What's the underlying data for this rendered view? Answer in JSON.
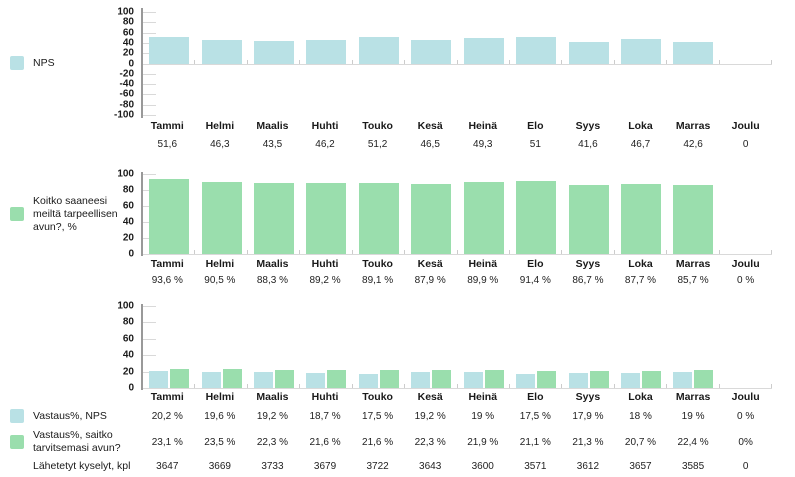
{
  "months": [
    "Tammi",
    "Helmi",
    "Maalis",
    "Huhti",
    "Touko",
    "Kesä",
    "Heinä",
    "Elo",
    "Syys",
    "Loka",
    "Marras",
    "Joulu"
  ],
  "colors": {
    "bar_blue": "#b9e1e5",
    "bar_green": "#9adead",
    "axis_line": "#999999",
    "tick_line": "#d9d9d9",
    "boundary_tick": "#cccccc",
    "text": "#1a1a1a"
  },
  "chart_data": [
    {
      "type": "bar",
      "legend": "NPS",
      "legend_position": "left",
      "grid": false,
      "series_color": "bar_blue",
      "categories": [
        "Tammi",
        "Helmi",
        "Maalis",
        "Huhti",
        "Touko",
        "Kesä",
        "Heinä",
        "Elo",
        "Syys",
        "Loka",
        "Marras",
        "Joulu"
      ],
      "values": [
        51.6,
        46.3,
        43.5,
        46.2,
        51.2,
        46.5,
        49.3,
        51,
        41.6,
        46.7,
        42.6,
        0
      ],
      "value_labels": [
        "51,6",
        "46,3",
        "43,5",
        "46,2",
        "51,2",
        "46,5",
        "49,3",
        "51",
        "41,6",
        "46,7",
        "42,6",
        "0"
      ],
      "ylim": [
        -100,
        100
      ],
      "yticks": [
        100,
        80,
        60,
        40,
        20,
        0,
        -20,
        -40,
        -60,
        -80,
        -100
      ]
    },
    {
      "type": "bar",
      "legend": "Koitko saaneesi meiltä tarpeellisen avun?, %",
      "legend_position": "left",
      "grid": false,
      "series_color": "bar_green",
      "categories": [
        "Tammi",
        "Helmi",
        "Maalis",
        "Huhti",
        "Touko",
        "Kesä",
        "Heinä",
        "Elo",
        "Syys",
        "Loka",
        "Marras",
        "Joulu"
      ],
      "values": [
        93.6,
        90.5,
        88.3,
        89.2,
        89.1,
        87.9,
        89.9,
        91.4,
        86.7,
        87.7,
        85.7,
        0
      ],
      "value_labels": [
        "93,6 %",
        "90,5 %",
        "88,3 %",
        "89,2 %",
        "89,1 %",
        "87,9 %",
        "89,9 %",
        "91,4 %",
        "86,7 %",
        "87,7 %",
        "85,7 %",
        "0 %"
      ],
      "ylim": [
        0,
        100
      ],
      "yticks": [
        100,
        80,
        60,
        40,
        20,
        0
      ]
    },
    {
      "type": "bar",
      "legend_position": "left",
      "grid": false,
      "categories": [
        "Tammi",
        "Helmi",
        "Maalis",
        "Huhti",
        "Touko",
        "Kesä",
        "Heinä",
        "Elo",
        "Syys",
        "Loka",
        "Marras",
        "Joulu"
      ],
      "ylim": [
        0,
        100
      ],
      "yticks": [
        100,
        80,
        60,
        40,
        20,
        0
      ],
      "series": [
        {
          "name": "Vastaus%, NPS",
          "color": "bar_blue",
          "values": [
            20.2,
            19.6,
            19.2,
            18.7,
            17.5,
            19.2,
            19,
            17.5,
            17.9,
            18,
            19,
            0
          ],
          "value_labels": [
            "20,2 %",
            "19,6 %",
            "19,2 %",
            "18,7 %",
            "17,5 %",
            "19,2 %",
            "19 %",
            "17,5 %",
            "17,9 %",
            "18 %",
            "19 %",
            "0 %"
          ]
        },
        {
          "name": "Vastaus%, saitko tarvitsemasi avun?",
          "color": "bar_green",
          "values": [
            23.1,
            23.5,
            22.3,
            21.6,
            21.6,
            22.3,
            21.9,
            21.1,
            21.3,
            20.7,
            22.4,
            0
          ],
          "value_labels": [
            "23,1 %",
            "23,5 %",
            "22,3 %",
            "21,6 %",
            "21,6 %",
            "22,3 %",
            "21,9 %",
            "21,1 %",
            "21,3 %",
            "20,7 %",
            "22,4 %",
            "0%"
          ]
        }
      ],
      "extra_row": {
        "name": "Lähetetyt kyselyt, kpl",
        "values": [
          "3647",
          "3669",
          "3733",
          "3679",
          "3722",
          "3643",
          "3600",
          "3571",
          "3612",
          "3657",
          "3585",
          "0"
        ]
      }
    }
  ]
}
